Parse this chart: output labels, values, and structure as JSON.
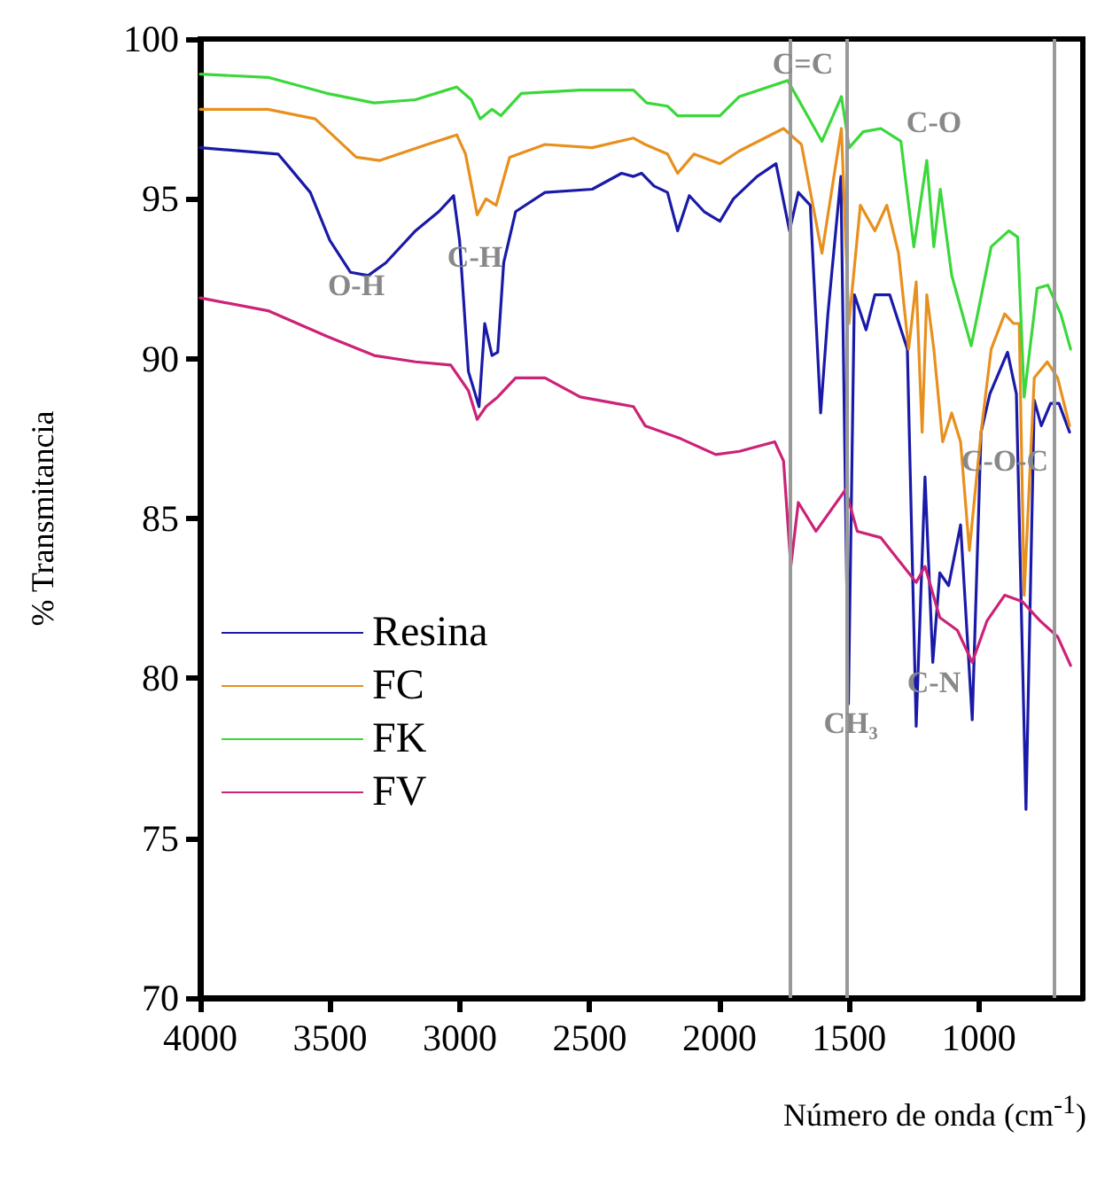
{
  "chart_data": {
    "type": "line",
    "xlabel": "Número de onda (cm$^{-1}$)",
    "ylabel": "% Transmitancia",
    "xlim": [
      4000,
      600
    ],
    "xticks": [
      4000,
      3500,
      3000,
      2500,
      2000,
      1500,
      1000
    ],
    "ylim": [
      70,
      100
    ],
    "yticks": [
      70,
      75,
      80,
      85,
      90,
      95,
      100
    ],
    "grid": false,
    "legend": "bottom left",
    "marker": "none",
    "line_style": "solid",
    "series": [
      {
        "name": "Resina",
        "color": "#1a1aa8",
        "x": [
          4000,
          3700,
          3648,
          3576,
          3501,
          3421,
          3353,
          3285,
          3171,
          3081,
          3024,
          3001,
          2967,
          2926,
          2904,
          2876,
          2854,
          2831,
          2785,
          2672,
          2490,
          2377,
          2331,
          2300,
          2252,
          2200,
          2161,
          2116,
          2059,
          1998,
          1946,
          1855,
          1782,
          1730,
          1696,
          1650,
          1610,
          1582,
          1532,
          1503,
          1480,
          1435,
          1401,
          1344,
          1276,
          1242,
          1208,
          1178,
          1151,
          1117,
          1071,
          1026,
          992,
          958,
          890,
          856,
          819,
          787,
          760,
          724,
          692,
          651
        ],
        "values": [
          96.6,
          96.4,
          95.9,
          95.2,
          93.7,
          92.7,
          92.6,
          93.0,
          94.0,
          94.6,
          95.1,
          93.7,
          89.6,
          88.5,
          91.1,
          90.1,
          90.2,
          93.0,
          94.6,
          95.2,
          95.3,
          95.8,
          95.7,
          95.8,
          95.4,
          95.2,
          94.0,
          95.1,
          94.6,
          94.3,
          95.0,
          95.7,
          96.1,
          94.0,
          95.2,
          94.8,
          88.3,
          91.4,
          95.7,
          79.2,
          92.0,
          90.9,
          92.0,
          92.0,
          90.3,
          78.5,
          86.3,
          80.5,
          83.3,
          82.9,
          84.8,
          78.7,
          87.7,
          88.9,
          90.2,
          88.9,
          75.9,
          88.7,
          87.9,
          88.6,
          88.6,
          87.7
        ]
      },
      {
        "name": "FC",
        "color": "#e8901e",
        "x": [
          4000,
          3739,
          3557,
          3399,
          3308,
          3126,
          3012,
          2978,
          2933,
          2899,
          2860,
          2808,
          2672,
          2490,
          2331,
          2286,
          2200,
          2161,
          2098,
          1998,
          1923,
          1753,
          1684,
          1605,
          1530,
          1501,
          1457,
          1401,
          1355,
          1310,
          1271,
          1242,
          1219,
          1201,
          1174,
          1140,
          1105,
          1071,
          1037,
          992,
          953,
          901,
          867,
          845,
          826,
          787,
          737,
          697,
          651
        ],
        "values": [
          97.8,
          97.8,
          97.5,
          96.3,
          96.2,
          96.7,
          97.0,
          96.4,
          94.5,
          95.0,
          94.8,
          96.3,
          96.7,
          96.6,
          96.9,
          96.7,
          96.4,
          95.8,
          96.4,
          96.1,
          96.5,
          97.2,
          96.7,
          93.3,
          97.2,
          91.1,
          94.8,
          94.0,
          94.8,
          93.3,
          90.3,
          92.4,
          87.7,
          92.0,
          90.3,
          87.4,
          88.3,
          87.4,
          84.0,
          87.7,
          90.3,
          91.4,
          91.1,
          91.1,
          82.6,
          89.4,
          89.9,
          89.4,
          87.9
        ]
      },
      {
        "name": "FK",
        "color": "#3ad83a",
        "x": [
          4000,
          3739,
          3512,
          3330,
          3171,
          3012,
          2956,
          2922,
          2876,
          2842,
          2763,
          2536,
          2331,
          2280,
          2200,
          2161,
          1998,
          1923,
          1737,
          1605,
          1530,
          1500,
          1446,
          1378,
          1301,
          1251,
          1201,
          1174,
          1149,
          1105,
          1030,
          953,
          885,
          851,
          826,
          776,
          735,
          685,
          647
        ],
        "values": [
          98.9,
          98.8,
          98.3,
          98.0,
          98.1,
          98.5,
          98.1,
          97.5,
          97.8,
          97.6,
          98.3,
          98.4,
          98.4,
          98.0,
          97.9,
          97.6,
          97.6,
          98.2,
          98.7,
          96.8,
          98.2,
          96.6,
          97.1,
          97.2,
          96.8,
          93.5,
          96.2,
          93.5,
          95.3,
          92.6,
          90.4,
          93.5,
          94.0,
          93.8,
          88.8,
          92.2,
          92.3,
          91.4,
          90.3
        ]
      },
      {
        "name": "FV",
        "color": "#cc2277",
        "x": [
          4000,
          3739,
          3512,
          3330,
          3171,
          3035,
          2967,
          2933,
          2899,
          2854,
          2785,
          2672,
          2536,
          2400,
          2331,
          2286,
          2150,
          2014,
          1923,
          1787,
          1753,
          1725,
          1696,
          1628,
          1514,
          1469,
          1378,
          1310,
          1242,
          1208,
          1151,
          1083,
          1026,
          969,
          901,
          833,
          765,
          697,
          647
        ],
        "values": [
          91.9,
          91.5,
          90.7,
          90.1,
          89.9,
          89.8,
          89.0,
          88.1,
          88.5,
          88.8,
          89.4,
          89.4,
          88.8,
          88.6,
          88.5,
          87.9,
          87.5,
          87.0,
          87.1,
          87.4,
          86.8,
          83.5,
          85.5,
          84.6,
          85.9,
          84.6,
          84.4,
          83.7,
          83.0,
          83.5,
          81.9,
          81.5,
          80.5,
          81.8,
          82.6,
          82.4,
          81.8,
          81.3,
          80.4
        ]
      }
    ],
    "ref_lines": [
      {
        "axis": "x",
        "value": 1725,
        "color": "#999999"
      },
      {
        "axis": "x",
        "value": 1512,
        "color": "#999999"
      },
      {
        "axis": "x",
        "value": 713,
        "color": "#999999"
      }
    ],
    "annotations": [
      "O-H",
      "C-H",
      "C=C",
      "C-O",
      "C-O-C",
      "C-N",
      "CH₃"
    ]
  }
}
